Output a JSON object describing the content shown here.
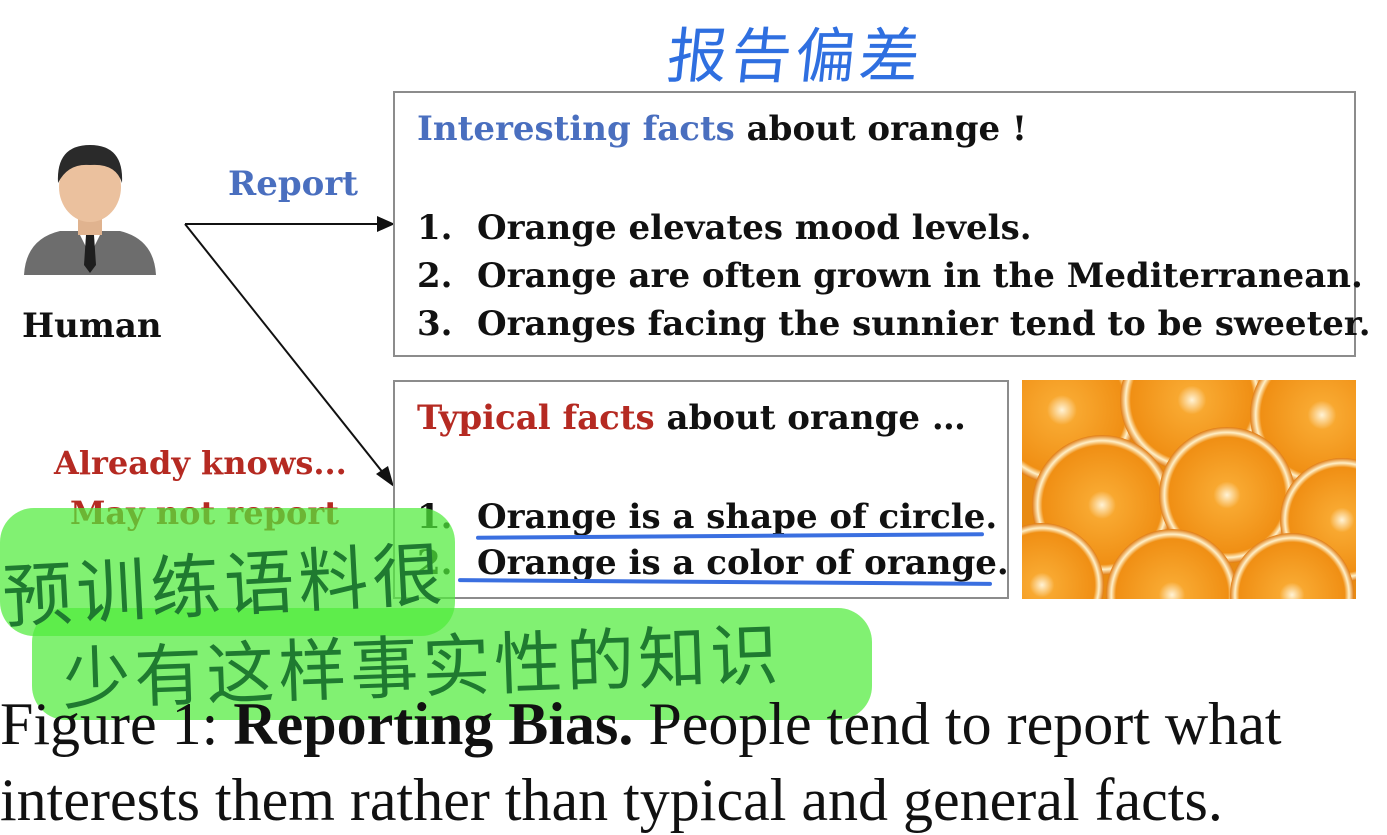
{
  "annotation_top": "报告偏差",
  "human_label": "Human",
  "report_label": "Report",
  "already_knows": [
    "Already knows...",
    "May not report"
  ],
  "interesting_box": {
    "title_colored": "Interesting facts",
    "title_rest": " about orange !",
    "items": [
      {
        "num": "1.",
        "text": "Orange elevates mood levels."
      },
      {
        "num": "2.",
        "text": "Orange are often grown in the Mediterranean."
      },
      {
        "num": "3.",
        "text": "Oranges facing the sunnier tend to be sweeter."
      }
    ]
  },
  "typical_box": {
    "title_colored": "Typical facts",
    "title_rest": " about orange …",
    "items": [
      {
        "num": "1.",
        "text": "Orange is a shape of circle."
      },
      {
        "num": "2.",
        "text": "Orange is a color of orange."
      }
    ]
  },
  "handwritten_note": [
    "预训练语料很",
    "少有这样事实性的知识"
  ],
  "caption": {
    "prefix": "Figure 1: ",
    "bold": "Reporting Bias.",
    "rest": " People tend to report what",
    "line2": "interests them rather than typical and general facts."
  },
  "colors": {
    "accent_blue": "#4a6fbf",
    "accent_red": "#b52a22",
    "handwriting_blue": "#2f6fe0",
    "highlight_green": "#5ded3c",
    "orange": "#f39a1e"
  }
}
